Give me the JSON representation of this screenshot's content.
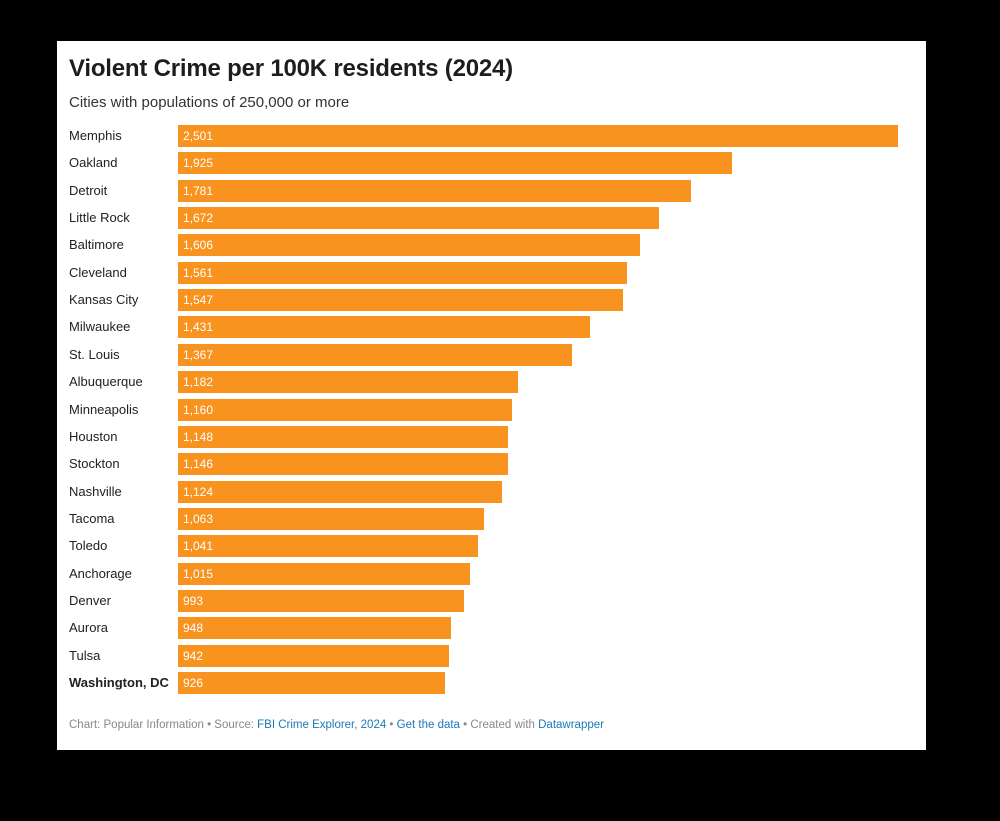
{
  "chart_data": {
    "type": "bar",
    "orientation": "horizontal",
    "title": "Violent Crime per 100K residents (2024)",
    "subtitle": "Cities with populations of 250,000 or more",
    "xlim": [
      0,
      2501
    ],
    "bar_color": "#f7931e",
    "categories": [
      "Memphis",
      "Oakland",
      "Detroit",
      "Little Rock",
      "Baltimore",
      "Cleveland",
      "Kansas City",
      "Milwaukee",
      "St. Louis",
      "Albuquerque",
      "Minneapolis",
      "Houston",
      "Stockton",
      "Nashville",
      "Tacoma",
      "Toledo",
      "Anchorage",
      "Denver",
      "Aurora",
      "Tulsa",
      "Washington, DC"
    ],
    "values": [
      2501,
      1925,
      1781,
      1672,
      1606,
      1561,
      1547,
      1431,
      1367,
      1182,
      1160,
      1148,
      1146,
      1124,
      1063,
      1041,
      1015,
      993,
      948,
      942,
      926
    ],
    "value_labels": [
      "2,501",
      "1,925",
      "1,781",
      "1,672",
      "1,606",
      "1,561",
      "1,547",
      "1,431",
      "1,367",
      "1,182",
      "1,160",
      "1,148",
      "1,146",
      "1,124",
      "1,063",
      "1,041",
      "1,015",
      "993",
      "948",
      "942",
      "926"
    ],
    "highlighted": [
      "Washington, DC"
    ]
  },
  "footer": {
    "chart_prefix": "Chart: Popular Information",
    "sep1": " • Source: ",
    "source": "FBI Crime Explorer, 2024",
    "sep2": " • ",
    "get_data": "Get the data",
    "sep3": " • Created with ",
    "tool": "Datawrapper"
  }
}
